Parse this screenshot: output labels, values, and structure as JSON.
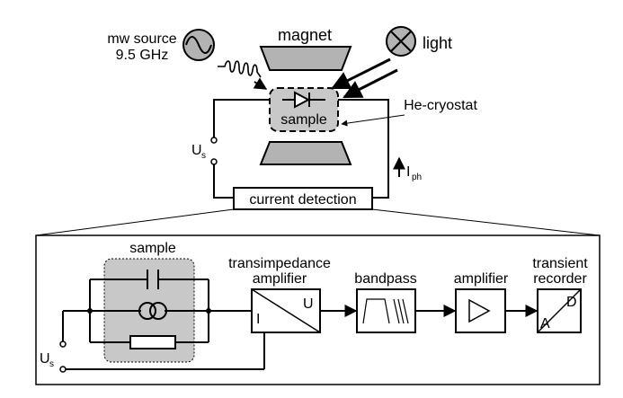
{
  "setup": {
    "mw_source_line1": "mw source",
    "mw_source_line2": "9.5 GHz",
    "magnet": "magnet",
    "light": "light",
    "sample": "sample",
    "cryostat": "He-cryostat",
    "voltage_main": "U",
    "voltage_sub": "s",
    "current_main": "I",
    "current_sub": "ph",
    "current_detection": "current detection"
  },
  "detail": {
    "sample": "sample",
    "transimpedance_line1": "transimpedance",
    "transimpedance_line2": "amplifier",
    "tia_in": "I",
    "tia_out": "U",
    "bandpass": "bandpass",
    "amplifier": "amplifier",
    "transient_line1": "transient",
    "transient_line2": "recorder",
    "adc_a": "A",
    "adc_d": "D",
    "voltage_main": "U",
    "voltage_sub": "s"
  },
  "colors": {
    "fill_gray": "#b3b3b3",
    "sample_gray": "#c8c8c8",
    "stroke": "#000000"
  }
}
